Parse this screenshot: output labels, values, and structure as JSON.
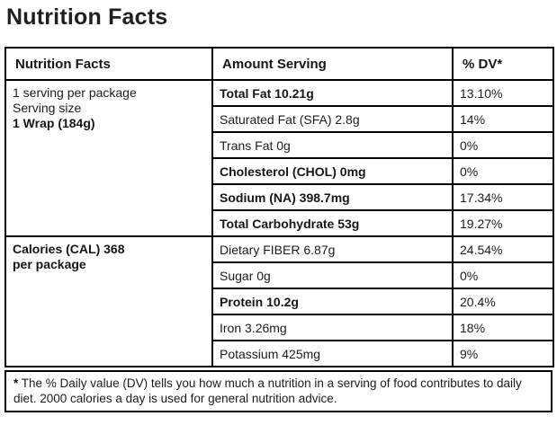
{
  "page_title": "Nutrition Facts",
  "colors": {
    "border": "#000000",
    "text": "#1c1c1c",
    "background": "#ffffff"
  },
  "table": {
    "headers": [
      "Nutrition Facts",
      "Amount Serving",
      "% DV*"
    ],
    "serving_info": [
      {
        "text": "1 serving per package",
        "bold": false
      },
      {
        "text": "Serving size",
        "bold": false
      },
      {
        "text": "1 Wrap (184g)",
        "bold": true
      }
    ],
    "calories_info": [
      {
        "text": "Calories (CAL) 368",
        "bold": true
      },
      {
        "text": "per package",
        "bold": true
      }
    ],
    "rows": [
      {
        "label": "Total Fat 10.21g",
        "dv": "13.10%",
        "bold": true
      },
      {
        "label": "Saturated Fat (SFA) 2.8g",
        "dv": "14%",
        "bold": false
      },
      {
        "label": "Trans Fat 0g",
        "dv": "0%",
        "bold": false
      },
      {
        "label": "Cholesterol (CHOL) 0mg",
        "dv": "0%",
        "bold": true
      },
      {
        "label": "Sodium (NA) 398.7mg",
        "dv": "17.34%",
        "bold": true
      },
      {
        "label": "Total Carbohydrate 53g",
        "dv": "19.27%",
        "bold": true
      },
      {
        "label": "Dietary FIBER 6.87g",
        "dv": "24.54%",
        "bold": false
      },
      {
        "label": "Sugar 0g",
        "dv": "0%",
        "bold": false
      },
      {
        "label": "Protein 10.2g",
        "dv": "20.4%",
        "bold": true
      },
      {
        "label": "Iron 3.26mg",
        "dv": "18%",
        "bold": false
      },
      {
        "label": "Potassium 425mg",
        "dv": "9%",
        "bold": false
      }
    ]
  },
  "footnote": {
    "marker": "*",
    "text": "The % Daily value (DV) tells you how much a nutrition in a serving of food contributes to daily diet. 2000 calories a day is used for general nutrition advice."
  }
}
